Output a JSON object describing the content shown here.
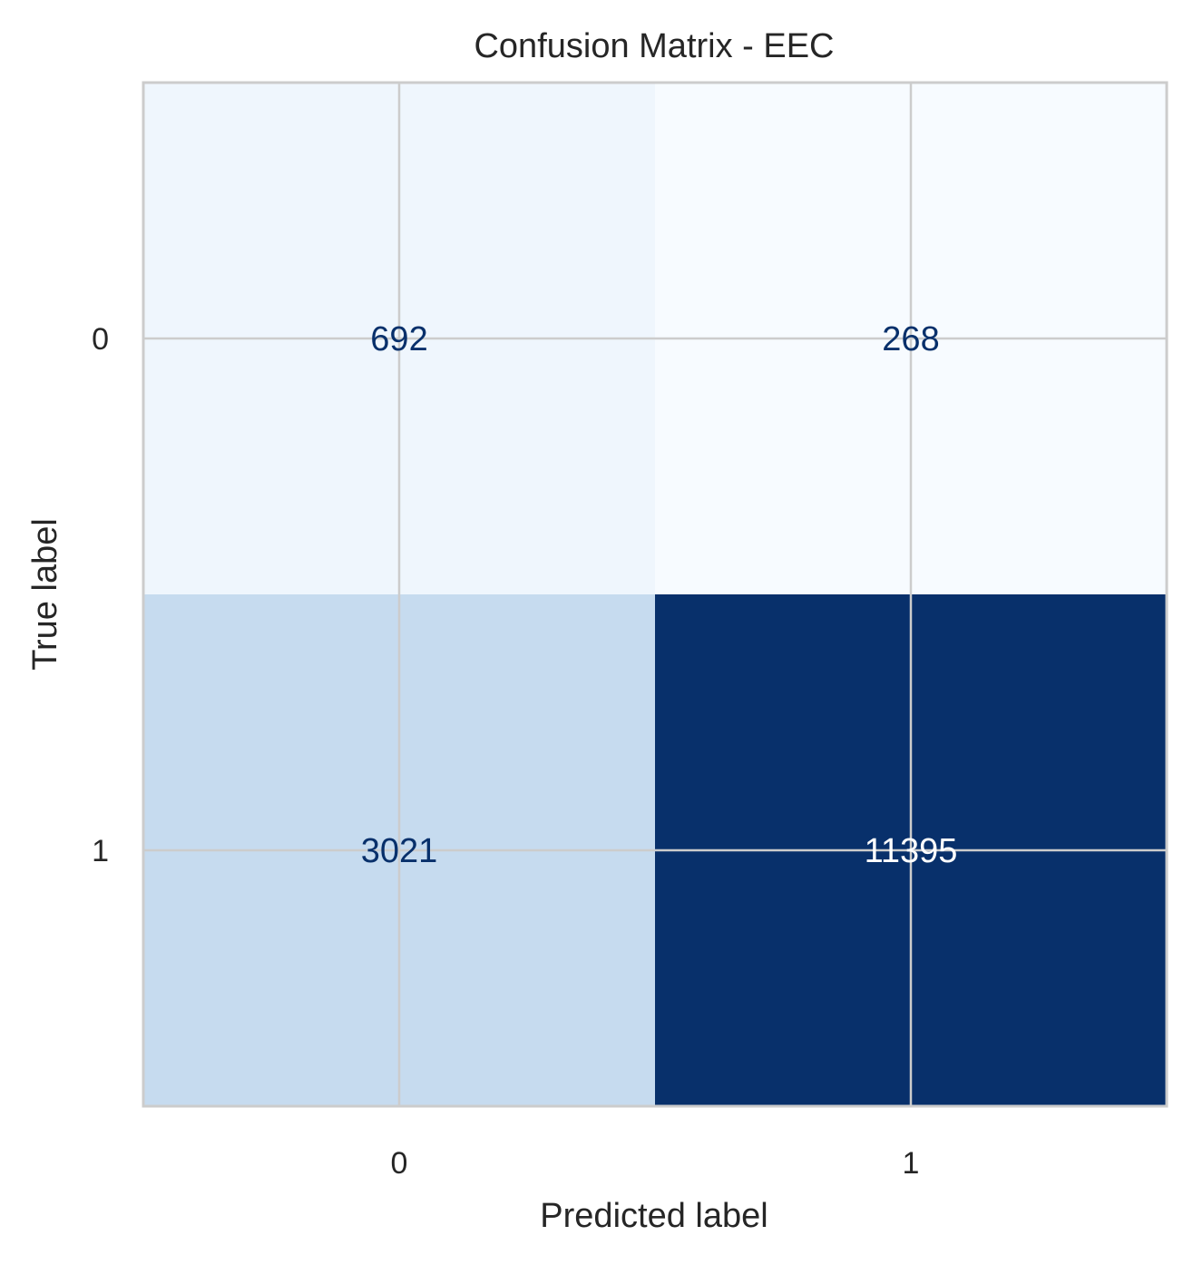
{
  "chart_data": {
    "type": "heatmap",
    "title": "Confusion Matrix - EEC",
    "xlabel": "Predicted label",
    "ylabel": "True label",
    "x_categories": [
      "0",
      "1"
    ],
    "y_categories": [
      "0",
      "1"
    ],
    "matrix": [
      [
        692,
        268
      ],
      [
        3021,
        11395
      ]
    ],
    "colormap": "Blues",
    "colors": {
      "low": "#f7fbff",
      "high": "#08306b",
      "text_dark": "#08306b",
      "text_light": "#ffffff",
      "grid": "#cccccc",
      "frame": "#cccccc"
    },
    "grid": true
  }
}
